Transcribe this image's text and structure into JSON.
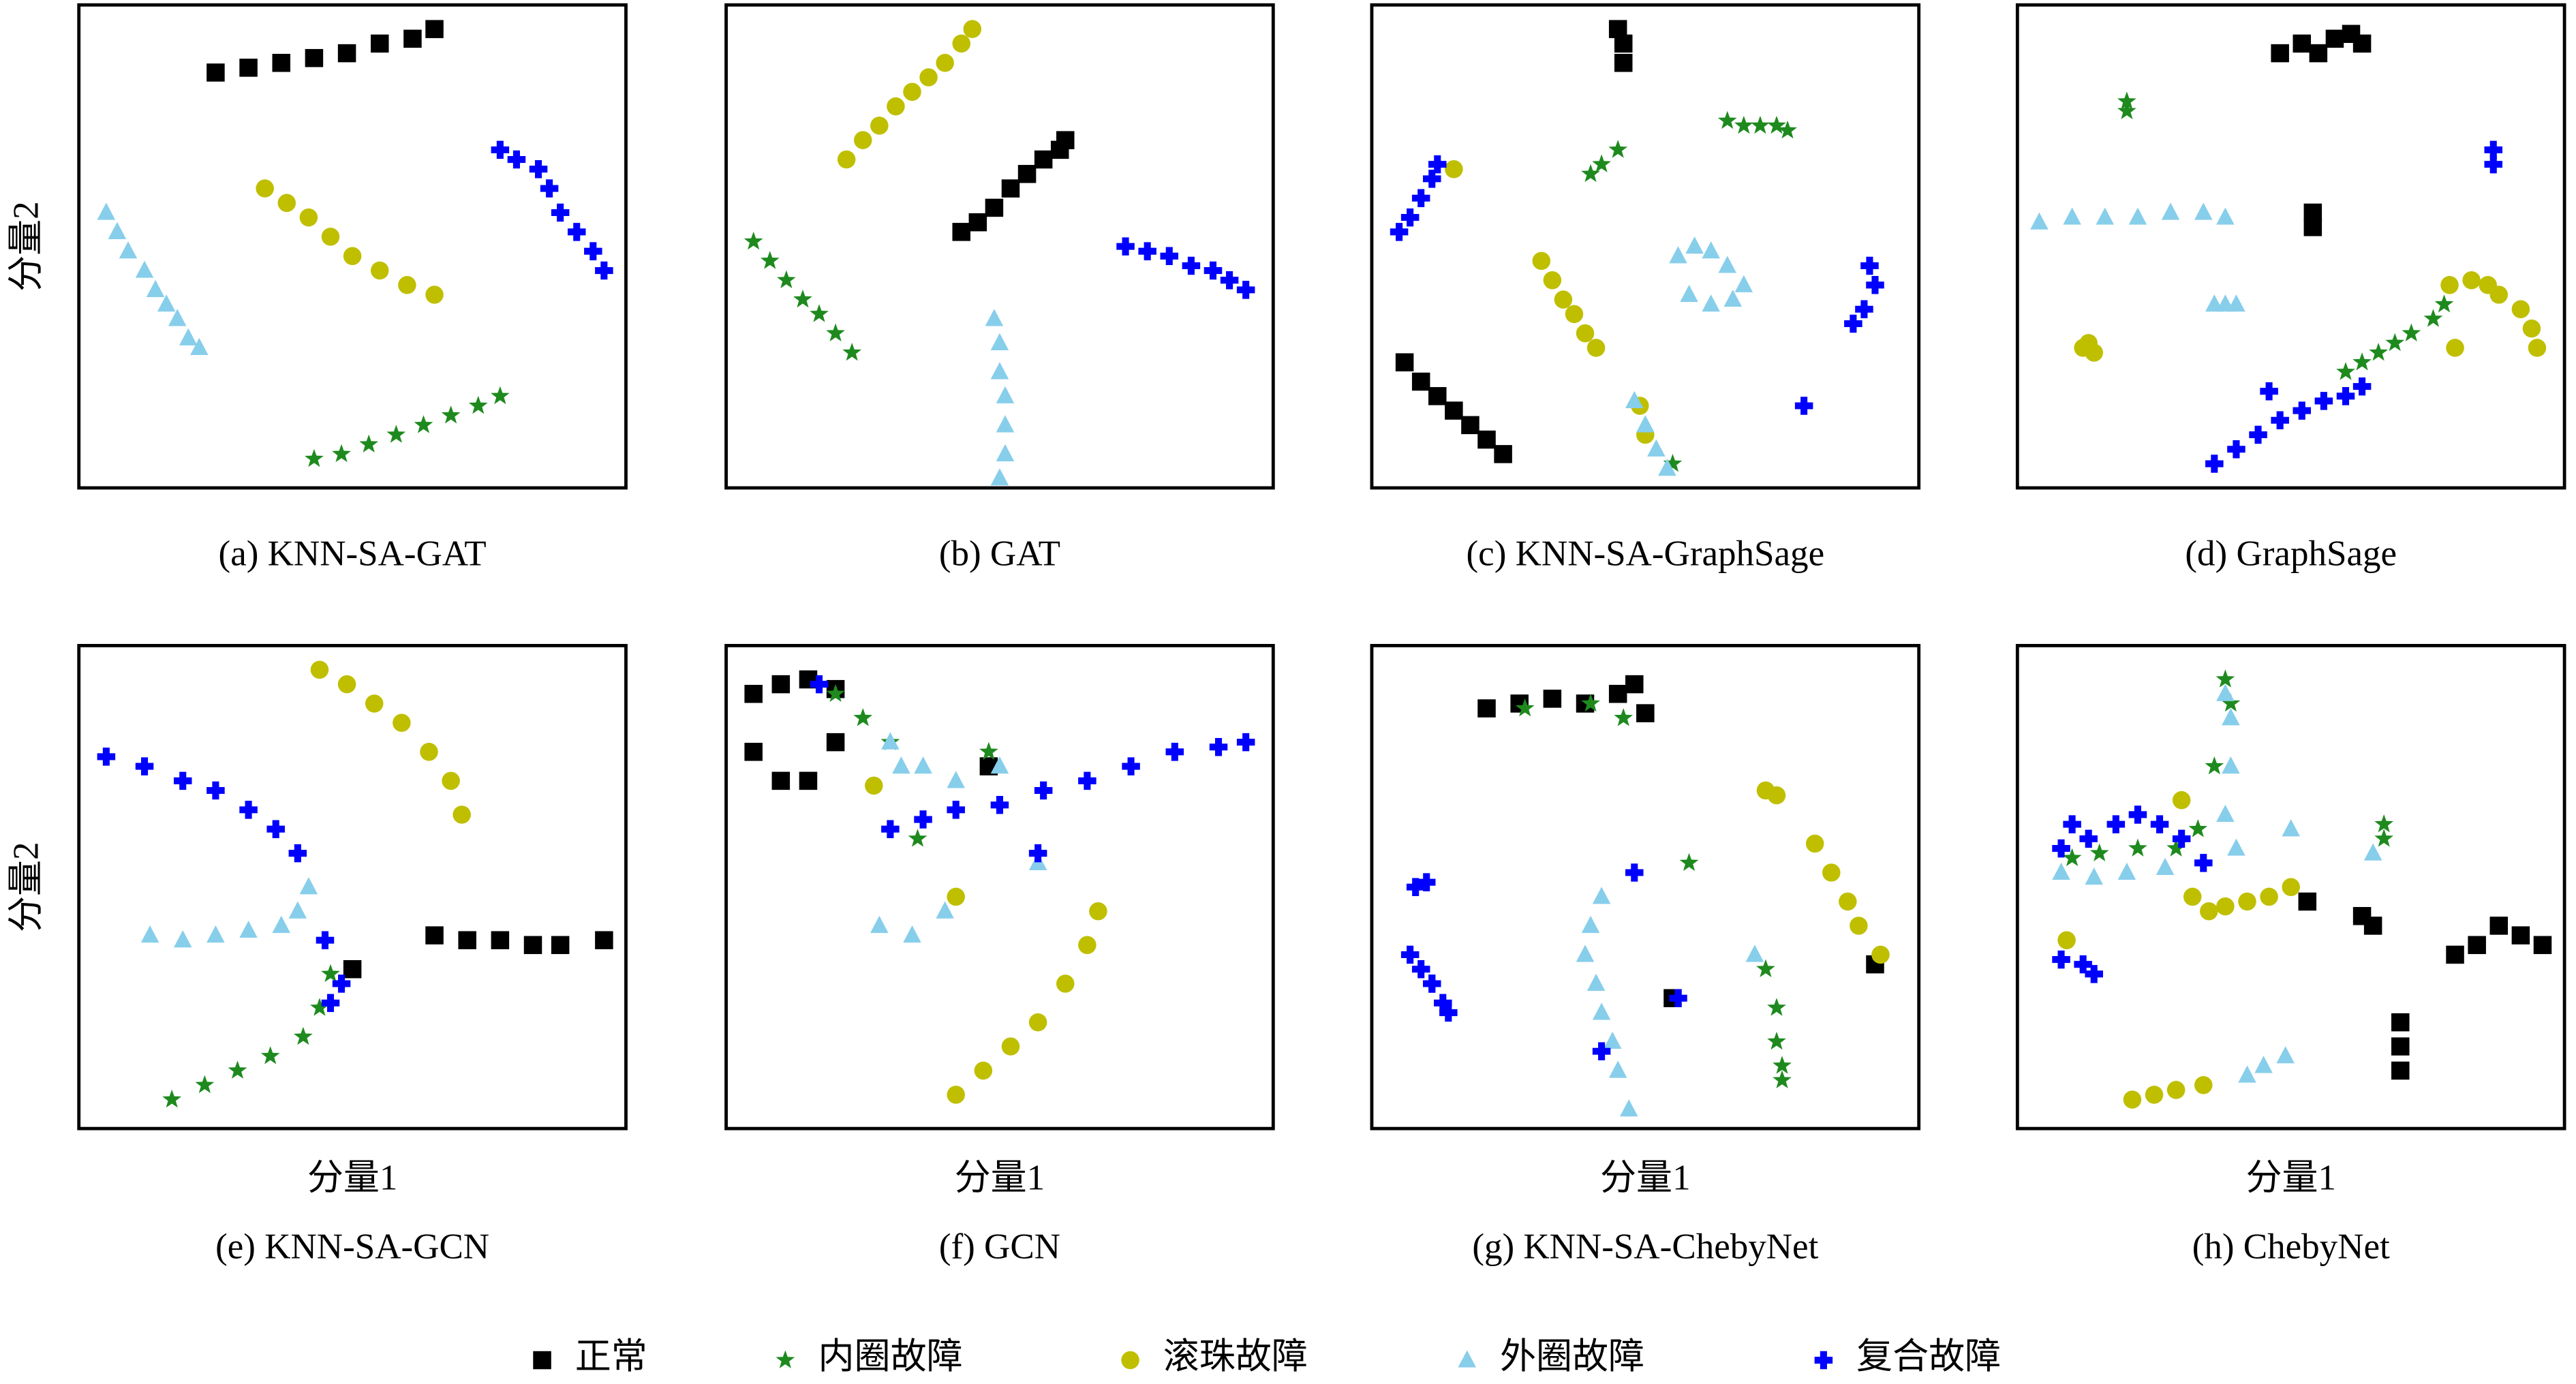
{
  "chart_data": [
    {
      "type": "scatter",
      "title": "(a) KNN-SA-GAT",
      "ylabel": "分量2",
      "xlim": [
        0,
        100
      ],
      "ylim": [
        0,
        100
      ],
      "series": [
        {
          "name": "正常",
          "color": "#000000",
          "marker": "square",
          "x": [
            25,
            31,
            37,
            43,
            49,
            55,
            61,
            65
          ],
          "y": [
            86,
            87,
            88,
            89,
            90,
            92,
            93,
            95
          ]
        },
        {
          "name": "内圈故障",
          "color": "#1e8a1e",
          "marker": "star",
          "x": [
            43,
            48,
            53,
            58,
            63,
            68,
            73,
            77
          ],
          "y": [
            6,
            7,
            9,
            11,
            13,
            15,
            17,
            19
          ]
        },
        {
          "name": "滚珠故障",
          "color": "#bfbf00",
          "marker": "circle",
          "x": [
            34,
            38,
            42,
            46,
            50,
            55,
            60,
            65
          ],
          "y": [
            62,
            59,
            56,
            52,
            48,
            45,
            42,
            40
          ]
        },
        {
          "name": "外圈故障",
          "color": "#87ceeb",
          "marker": "triangle",
          "x": [
            5,
            7,
            9,
            12,
            14,
            16,
            18,
            20,
            22
          ],
          "y": [
            57,
            53,
            49,
            45,
            41,
            38,
            35,
            31,
            29
          ]
        },
        {
          "name": "复合故障",
          "color": "#0000ff",
          "marker": "plus",
          "x": [
            77,
            80,
            84,
            86,
            88,
            91,
            94,
            96
          ],
          "y": [
            70,
            68,
            66,
            62,
            57,
            53,
            49,
            45
          ]
        }
      ]
    },
    {
      "type": "scatter",
      "title": "(b) GAT",
      "xlim": [
        0,
        100
      ],
      "ylim": [
        0,
        100
      ],
      "series": [
        {
          "name": "正常",
          "color": "#000000",
          "marker": "square",
          "x": [
            43,
            46,
            49,
            52,
            55,
            58,
            61,
            62
          ],
          "y": [
            53,
            55,
            58,
            62,
            65,
            68,
            70,
            72
          ]
        },
        {
          "name": "内圈故障",
          "color": "#1e8a1e",
          "marker": "star",
          "x": [
            5,
            8,
            11,
            14,
            17,
            20,
            23
          ],
          "y": [
            51,
            47,
            43,
            39,
            36,
            32,
            28
          ]
        },
        {
          "name": "滚珠故障",
          "color": "#bfbf00",
          "marker": "circle",
          "x": [
            22,
            25,
            28,
            31,
            34,
            37,
            40,
            43,
            45
          ],
          "y": [
            68,
            72,
            75,
            79,
            82,
            85,
            88,
            92,
            95
          ]
        },
        {
          "name": "外圈故障",
          "color": "#87ceeb",
          "marker": "triangle",
          "x": [
            49,
            50,
            50,
            51,
            51,
            51,
            50
          ],
          "y": [
            35,
            30,
            24,
            19,
            13,
            7,
            2
          ]
        },
        {
          "name": "复合故障",
          "color": "#0000ff",
          "marker": "plus",
          "x": [
            73,
            77,
            81,
            85,
            89,
            92,
            95
          ],
          "y": [
            50,
            49,
            48,
            46,
            45,
            43,
            41
          ]
        }
      ]
    },
    {
      "type": "scatter",
      "title": "(c) KNN-SA-GraphSage",
      "xlim": [
        0,
        100
      ],
      "ylim": [
        0,
        100
      ],
      "series": [
        {
          "name": "正常",
          "color": "#000000",
          "marker": "square",
          "x": [
            45,
            46,
            46,
            6,
            9,
            12,
            15,
            18,
            21,
            24
          ],
          "y": [
            95,
            92,
            88,
            26,
            22,
            19,
            16,
            13,
            10,
            7
          ]
        },
        {
          "name": "内圈故障",
          "color": "#1e8a1e",
          "marker": "star",
          "x": [
            65,
            68,
            71,
            74,
            76,
            40,
            42,
            45,
            55
          ],
          "y": [
            76,
            75,
            75,
            75,
            74,
            65,
            67,
            70,
            5
          ]
        },
        {
          "name": "滚珠故障",
          "color": "#bfbf00",
          "marker": "circle",
          "x": [
            31,
            33,
            35,
            37,
            39,
            41,
            15,
            50,
            49
          ],
          "y": [
            47,
            43,
            39,
            36,
            32,
            29,
            66,
            11,
            17
          ]
        },
        {
          "name": "外圈故障",
          "color": "#87ceeb",
          "marker": "triangle",
          "x": [
            56,
            59,
            62,
            65,
            68,
            66,
            62,
            58,
            48,
            50,
            52,
            54
          ],
          "y": [
            48,
            50,
            49,
            46,
            42,
            39,
            38,
            40,
            18,
            13,
            8,
            4
          ]
        },
        {
          "name": "复合故障",
          "color": "#0000ff",
          "marker": "plus",
          "x": [
            5,
            7,
            9,
            11,
            12,
            88,
            90,
            92,
            91,
            79
          ],
          "y": [
            53,
            56,
            60,
            64,
            67,
            34,
            37,
            42,
            46,
            17
          ]
        }
      ]
    },
    {
      "type": "scatter",
      "title": "(d) GraphSage",
      "xlim": [
        0,
        100
      ],
      "ylim": [
        0,
        100
      ],
      "series": [
        {
          "name": "正常",
          "color": "#000000",
          "marker": "square",
          "x": [
            48,
            52,
            55,
            58,
            61,
            63,
            54,
            54
          ],
          "y": [
            90,
            92,
            90,
            93,
            94,
            92,
            54,
            57
          ]
        },
        {
          "name": "内圈故障",
          "color": "#1e8a1e",
          "marker": "star",
          "x": [
            20,
            20,
            60,
            63,
            66,
            69,
            72,
            76,
            78
          ],
          "y": [
            78,
            80,
            24,
            26,
            28,
            30,
            32,
            35,
            38
          ]
        },
        {
          "name": "滚珠故障",
          "color": "#bfbf00",
          "marker": "circle",
          "x": [
            12,
            13,
            14,
            79,
            83,
            86,
            88,
            92,
            94,
            95,
            80
          ],
          "y": [
            29,
            30,
            28,
            42,
            43,
            42,
            40,
            37,
            33,
            29,
            29
          ]
        },
        {
          "name": "外圈故障",
          "color": "#87ceeb",
          "marker": "triangle",
          "x": [
            4,
            10,
            16,
            22,
            28,
            34,
            38,
            36,
            38,
            40
          ],
          "y": [
            55,
            56,
            56,
            56,
            57,
            57,
            56,
            38,
            38,
            38
          ]
        },
        {
          "name": "复合故障",
          "color": "#0000ff",
          "marker": "plus",
          "x": [
            87,
            87,
            36,
            40,
            44,
            48,
            52,
            56,
            60,
            63,
            46
          ],
          "y": [
            67,
            70,
            5,
            8,
            11,
            14,
            16,
            18,
            19,
            21,
            20
          ]
        }
      ]
    },
    {
      "type": "scatter",
      "title": "(e) KNN-SA-GCN",
      "xlabel": "分量1",
      "ylabel": "分量2",
      "xlim": [
        0,
        100
      ],
      "ylim": [
        0,
        100
      ],
      "series": [
        {
          "name": "正常",
          "color": "#000000",
          "marker": "square",
          "x": [
            65,
            71,
            77,
            83,
            88,
            96,
            50
          ],
          "y": [
            40,
            39,
            39,
            38,
            38,
            39,
            33
          ]
        },
        {
          "name": "内圈故障",
          "color": "#1e8a1e",
          "marker": "star",
          "x": [
            17,
            23,
            29,
            35,
            41,
            44,
            46
          ],
          "y": [
            6,
            9,
            12,
            15,
            19,
            25,
            32
          ]
        },
        {
          "name": "滚珠故障",
          "color": "#bfbf00",
          "marker": "circle",
          "x": [
            44,
            49,
            54,
            59,
            64,
            68,
            70
          ],
          "y": [
            95,
            92,
            88,
            84,
            78,
            72,
            65
          ]
        },
        {
          "name": "外圈故障",
          "color": "#87ceeb",
          "marker": "triangle",
          "x": [
            13,
            19,
            25,
            31,
            37,
            40,
            42
          ],
          "y": [
            40,
            39,
            40,
            41,
            42,
            45,
            50
          ]
        },
        {
          "name": "复合故障",
          "color": "#0000ff",
          "marker": "plus",
          "x": [
            5,
            12,
            19,
            25,
            31,
            36,
            40,
            45,
            48,
            46
          ],
          "y": [
            77,
            75,
            72,
            70,
            66,
            62,
            57,
            39,
            30,
            26
          ]
        }
      ]
    },
    {
      "type": "scatter",
      "title": "(f) GCN",
      "xlabel": "分量1",
      "xlim": [
        0,
        100
      ],
      "ylim": [
        0,
        100
      ],
      "series": [
        {
          "name": "正常",
          "color": "#000000",
          "marker": "square",
          "x": [
            5,
            10,
            15,
            20,
            20,
            15,
            10,
            5,
            48
          ],
          "y": [
            90,
            92,
            93,
            91,
            80,
            72,
            72,
            78,
            75
          ]
        },
        {
          "name": "内圈故障",
          "color": "#1e8a1e",
          "marker": "star",
          "x": [
            20,
            25,
            30,
            35,
            48
          ],
          "y": [
            90,
            85,
            80,
            60,
            78
          ]
        },
        {
          "name": "滚珠故障",
          "color": "#bfbf00",
          "marker": "circle",
          "x": [
            42,
            47,
            52,
            57,
            62,
            66,
            68,
            27,
            42
          ],
          "y": [
            7,
            12,
            17,
            22,
            30,
            38,
            45,
            71,
            48
          ]
        },
        {
          "name": "外圈故障",
          "color": "#87ceeb",
          "marker": "triangle",
          "x": [
            30,
            32,
            36,
            42,
            50,
            57,
            40,
            28,
            34
          ],
          "y": [
            80,
            75,
            75,
            72,
            75,
            55,
            45,
            42,
            40
          ]
        },
        {
          "name": "复合故障",
          "color": "#0000ff",
          "marker": "plus",
          "x": [
            30,
            36,
            42,
            50,
            58,
            66,
            74,
            82,
            90,
            95,
            57,
            17
          ],
          "y": [
            62,
            64,
            66,
            67,
            70,
            72,
            75,
            78,
            79,
            80,
            57,
            92
          ]
        }
      ]
    },
    {
      "type": "scatter",
      "title": "(g) KNN-SA-ChebyNet",
      "xlabel": "分量1",
      "xlim": [
        0,
        100
      ],
      "ylim": [
        0,
        100
      ],
      "series": [
        {
          "name": "正常",
          "color": "#000000",
          "marker": "square",
          "x": [
            21,
            27,
            33,
            39,
            45,
            48,
            50,
            92,
            55
          ],
          "y": [
            87,
            88,
            89,
            88,
            90,
            92,
            86,
            34,
            27
          ]
        },
        {
          "name": "内圈故障",
          "color": "#1e8a1e",
          "marker": "star",
          "x": [
            28,
            40,
            46,
            58,
            72,
            74,
            74,
            75,
            75
          ],
          "y": [
            87,
            88,
            85,
            55,
            33,
            25,
            18,
            13,
            10
          ]
        },
        {
          "name": "滚珠故障",
          "color": "#bfbf00",
          "marker": "circle",
          "x": [
            72,
            74,
            81,
            84,
            87,
            89,
            93
          ],
          "y": [
            70,
            69,
            59,
            53,
            47,
            42,
            36
          ]
        },
        {
          "name": "外圈故障",
          "color": "#87ceeb",
          "marker": "triangle",
          "x": [
            42,
            40,
            39,
            41,
            42,
            44,
            45,
            47,
            70
          ],
          "y": [
            48,
            42,
            36,
            30,
            24,
            18,
            12,
            4,
            36
          ]
        },
        {
          "name": "复合故障",
          "color": "#0000ff",
          "marker": "plus",
          "x": [
            8,
            10,
            7,
            9,
            11,
            13,
            14,
            11,
            48,
            42,
            56
          ],
          "y": [
            50,
            51,
            36,
            33,
            30,
            26,
            24,
            30,
            53,
            16,
            27
          ]
        }
      ]
    },
    {
      "type": "scatter",
      "title": "(h) ChebyNet",
      "xlabel": "分量1",
      "xlim": [
        0,
        100
      ],
      "ylim": [
        0,
        100
      ],
      "series": [
        {
          "name": "正常",
          "color": "#000000",
          "marker": "square",
          "x": [
            80,
            84,
            88,
            92,
            96,
            63,
            65,
            70,
            70,
            70,
            53
          ],
          "y": [
            36,
            38,
            42,
            40,
            38,
            44,
            42,
            22,
            17,
            12,
            47
          ]
        },
        {
          "name": "内圈故障",
          "color": "#1e8a1e",
          "marker": "star",
          "x": [
            38,
            39,
            67,
            67,
            10,
            15,
            22,
            29,
            33,
            36
          ],
          "y": [
            93,
            88,
            63,
            60,
            56,
            57,
            58,
            58,
            62,
            75
          ]
        },
        {
          "name": "滚珠故障",
          "color": "#bfbf00",
          "marker": "circle",
          "x": [
            21,
            25,
            29,
            34,
            32,
            35,
            38,
            42,
            46,
            50,
            30,
            9
          ],
          "y": [
            6,
            7,
            8,
            9,
            48,
            45,
            46,
            47,
            48,
            50,
            68,
            39
          ]
        },
        {
          "name": "外圈故障",
          "color": "#87ceeb",
          "marker": "triangle",
          "x": [
            38,
            39,
            39,
            38,
            40,
            8,
            14,
            20,
            27,
            50,
            42,
            45,
            49,
            65
          ],
          "y": [
            90,
            85,
            75,
            65,
            58,
            53,
            52,
            53,
            54,
            62,
            11,
            13,
            15,
            57
          ]
        },
        {
          "name": "复合故障",
          "color": "#0000ff",
          "marker": "plus",
          "x": [
            8,
            10,
            13,
            18,
            22,
            26,
            30,
            34,
            8,
            12,
            14
          ],
          "y": [
            58,
            63,
            60,
            63,
            65,
            63,
            60,
            55,
            35,
            34,
            32
          ]
        }
      ]
    }
  ]
}
